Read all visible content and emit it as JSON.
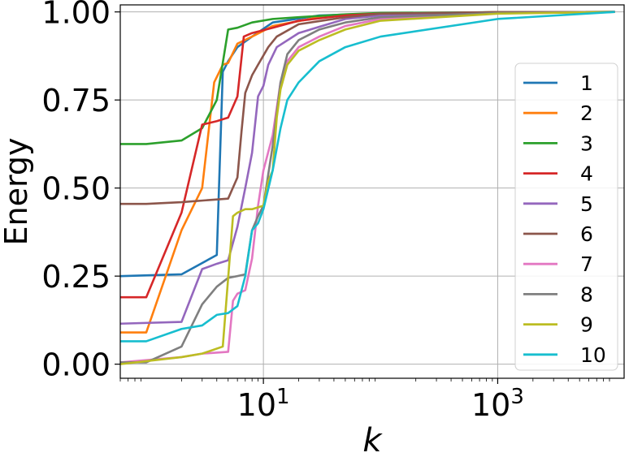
{
  "chart_data": {
    "type": "line",
    "title": "",
    "xlabel": "k",
    "ylabel": "Energy",
    "x_scale": "log",
    "xlim": [
      0.6,
      12000
    ],
    "ylim": [
      -0.04,
      1.02
    ],
    "grid": true,
    "legend_position": "right",
    "x_ticks": [
      {
        "value": 10,
        "base": "10",
        "exp": "1"
      },
      {
        "value": 1000,
        "base": "10",
        "exp": "3"
      }
    ],
    "y_ticks": [
      {
        "value": 0.0,
        "label": "0.00"
      },
      {
        "value": 0.25,
        "label": "0.25"
      },
      {
        "value": 0.5,
        "label": "0.50"
      },
      {
        "value": 0.75,
        "label": "0.75"
      },
      {
        "value": 1.0,
        "label": "1.00"
      }
    ],
    "series": [
      {
        "name": "1",
        "color": "#1f77b4",
        "points": [
          [
            0.6,
            0.25
          ],
          [
            2,
            0.255
          ],
          [
            4,
            0.31
          ],
          [
            4.5,
            0.83
          ],
          [
            5,
            0.86
          ],
          [
            6,
            0.9
          ],
          [
            8,
            0.93
          ],
          [
            12,
            0.97
          ],
          [
            30,
            0.99
          ],
          [
            100,
            0.996
          ],
          [
            1000,
            0.999
          ],
          [
            10000,
            1.0
          ]
        ]
      },
      {
        "name": "2",
        "color": "#ff7f0e",
        "points": [
          [
            0.6,
            0.09
          ],
          [
            1,
            0.09
          ],
          [
            2,
            0.38
          ],
          [
            3,
            0.5
          ],
          [
            3.8,
            0.8
          ],
          [
            4.5,
            0.85
          ],
          [
            5,
            0.855
          ],
          [
            6,
            0.91
          ],
          [
            8,
            0.93
          ],
          [
            12,
            0.96
          ],
          [
            30,
            0.985
          ],
          [
            100,
            0.995
          ],
          [
            1000,
            0.999
          ],
          [
            10000,
            1.0
          ]
        ]
      },
      {
        "name": "3",
        "color": "#2ca02c",
        "points": [
          [
            0.6,
            0.625
          ],
          [
            1,
            0.625
          ],
          [
            2,
            0.635
          ],
          [
            3,
            0.67
          ],
          [
            4,
            0.75
          ],
          [
            5,
            0.95
          ],
          [
            6,
            0.955
          ],
          [
            8,
            0.97
          ],
          [
            12,
            0.98
          ],
          [
            20,
            0.985
          ],
          [
            50,
            0.993
          ],
          [
            100,
            0.997
          ],
          [
            1000,
            0.999
          ],
          [
            10000,
            1.0
          ]
        ]
      },
      {
        "name": "4",
        "color": "#d62728",
        "points": [
          [
            0.6,
            0.19
          ],
          [
            1,
            0.19
          ],
          [
            2,
            0.43
          ],
          [
            3,
            0.68
          ],
          [
            4,
            0.69
          ],
          [
            5,
            0.7
          ],
          [
            6,
            0.76
          ],
          [
            6.8,
            0.93
          ],
          [
            8,
            0.94
          ],
          [
            12,
            0.955
          ],
          [
            20,
            0.975
          ],
          [
            50,
            0.99
          ],
          [
            100,
            0.995
          ],
          [
            1000,
            0.999
          ],
          [
            10000,
            1.0
          ]
        ]
      },
      {
        "name": "5",
        "color": "#9467bd",
        "points": [
          [
            0.6,
            0.115
          ],
          [
            2,
            0.12
          ],
          [
            3,
            0.27
          ],
          [
            4,
            0.285
          ],
          [
            5,
            0.295
          ],
          [
            6,
            0.39
          ],
          [
            7,
            0.5
          ],
          [
            8,
            0.6
          ],
          [
            9,
            0.76
          ],
          [
            10,
            0.79
          ],
          [
            11,
            0.85
          ],
          [
            13,
            0.9
          ],
          [
            20,
            0.94
          ],
          [
            50,
            0.98
          ],
          [
            100,
            0.99
          ],
          [
            1000,
            0.998
          ],
          [
            10000,
            1.0
          ]
        ]
      },
      {
        "name": "6",
        "color": "#8c564b",
        "points": [
          [
            0.6,
            0.455
          ],
          [
            1,
            0.455
          ],
          [
            2,
            0.46
          ],
          [
            5,
            0.47
          ],
          [
            6,
            0.53
          ],
          [
            6.5,
            0.66
          ],
          [
            7,
            0.77
          ],
          [
            8,
            0.82
          ],
          [
            9,
            0.85
          ],
          [
            11,
            0.9
          ],
          [
            13,
            0.93
          ],
          [
            20,
            0.965
          ],
          [
            50,
            0.985
          ],
          [
            100,
            0.995
          ],
          [
            1000,
            0.999
          ],
          [
            10000,
            1.0
          ]
        ]
      },
      {
        "name": "7",
        "color": "#e377c2",
        "points": [
          [
            0.6,
            0.005
          ],
          [
            2,
            0.02
          ],
          [
            3,
            0.03
          ],
          [
            5,
            0.035
          ],
          [
            5.5,
            0.18
          ],
          [
            6,
            0.2
          ],
          [
            7,
            0.21
          ],
          [
            8,
            0.3
          ],
          [
            9,
            0.45
          ],
          [
            10,
            0.55
          ],
          [
            12,
            0.65
          ],
          [
            14,
            0.8
          ],
          [
            16,
            0.86
          ],
          [
            20,
            0.9
          ],
          [
            30,
            0.93
          ],
          [
            50,
            0.96
          ],
          [
            100,
            0.98
          ],
          [
            1000,
            0.996
          ],
          [
            10000,
            1.0
          ]
        ]
      },
      {
        "name": "8",
        "color": "#7f7f7f",
        "points": [
          [
            0.6,
            0.005
          ],
          [
            1,
            0.005
          ],
          [
            2,
            0.05
          ],
          [
            3,
            0.17
          ],
          [
            4,
            0.22
          ],
          [
            5,
            0.245
          ],
          [
            6,
            0.25
          ],
          [
            7,
            0.255
          ],
          [
            8,
            0.38
          ],
          [
            9,
            0.42
          ],
          [
            10,
            0.45
          ],
          [
            12,
            0.62
          ],
          [
            14,
            0.8
          ],
          [
            16,
            0.88
          ],
          [
            20,
            0.92
          ],
          [
            30,
            0.95
          ],
          [
            50,
            0.97
          ],
          [
            100,
            0.985
          ],
          [
            1000,
            0.997
          ],
          [
            10000,
            1.0
          ]
        ]
      },
      {
        "name": "9",
        "color": "#bcbd22",
        "points": [
          [
            0.6,
            0.0
          ],
          [
            2,
            0.02
          ],
          [
            3,
            0.03
          ],
          [
            4.5,
            0.05
          ],
          [
            5.5,
            0.42
          ],
          [
            6,
            0.43
          ],
          [
            7,
            0.44
          ],
          [
            8,
            0.44
          ],
          [
            10,
            0.45
          ],
          [
            11,
            0.52
          ],
          [
            12,
            0.55
          ],
          [
            13,
            0.7
          ],
          [
            14,
            0.78
          ],
          [
            16,
            0.85
          ],
          [
            20,
            0.89
          ],
          [
            30,
            0.92
          ],
          [
            50,
            0.95
          ],
          [
            100,
            0.975
          ],
          [
            1000,
            0.995
          ],
          [
            10000,
            1.0
          ]
        ]
      },
      {
        "name": "10",
        "color": "#17becf",
        "points": [
          [
            0.6,
            0.065
          ],
          [
            1,
            0.065
          ],
          [
            2,
            0.1
          ],
          [
            3,
            0.11
          ],
          [
            4,
            0.14
          ],
          [
            5,
            0.145
          ],
          [
            6,
            0.165
          ],
          [
            7,
            0.25
          ],
          [
            8,
            0.38
          ],
          [
            9,
            0.4
          ],
          [
            10,
            0.44
          ],
          [
            12,
            0.55
          ],
          [
            14,
            0.67
          ],
          [
            16,
            0.75
          ],
          [
            20,
            0.8
          ],
          [
            30,
            0.86
          ],
          [
            50,
            0.9
          ],
          [
            100,
            0.93
          ],
          [
            1000,
            0.98
          ],
          [
            10000,
            1.0
          ]
        ]
      }
    ]
  }
}
